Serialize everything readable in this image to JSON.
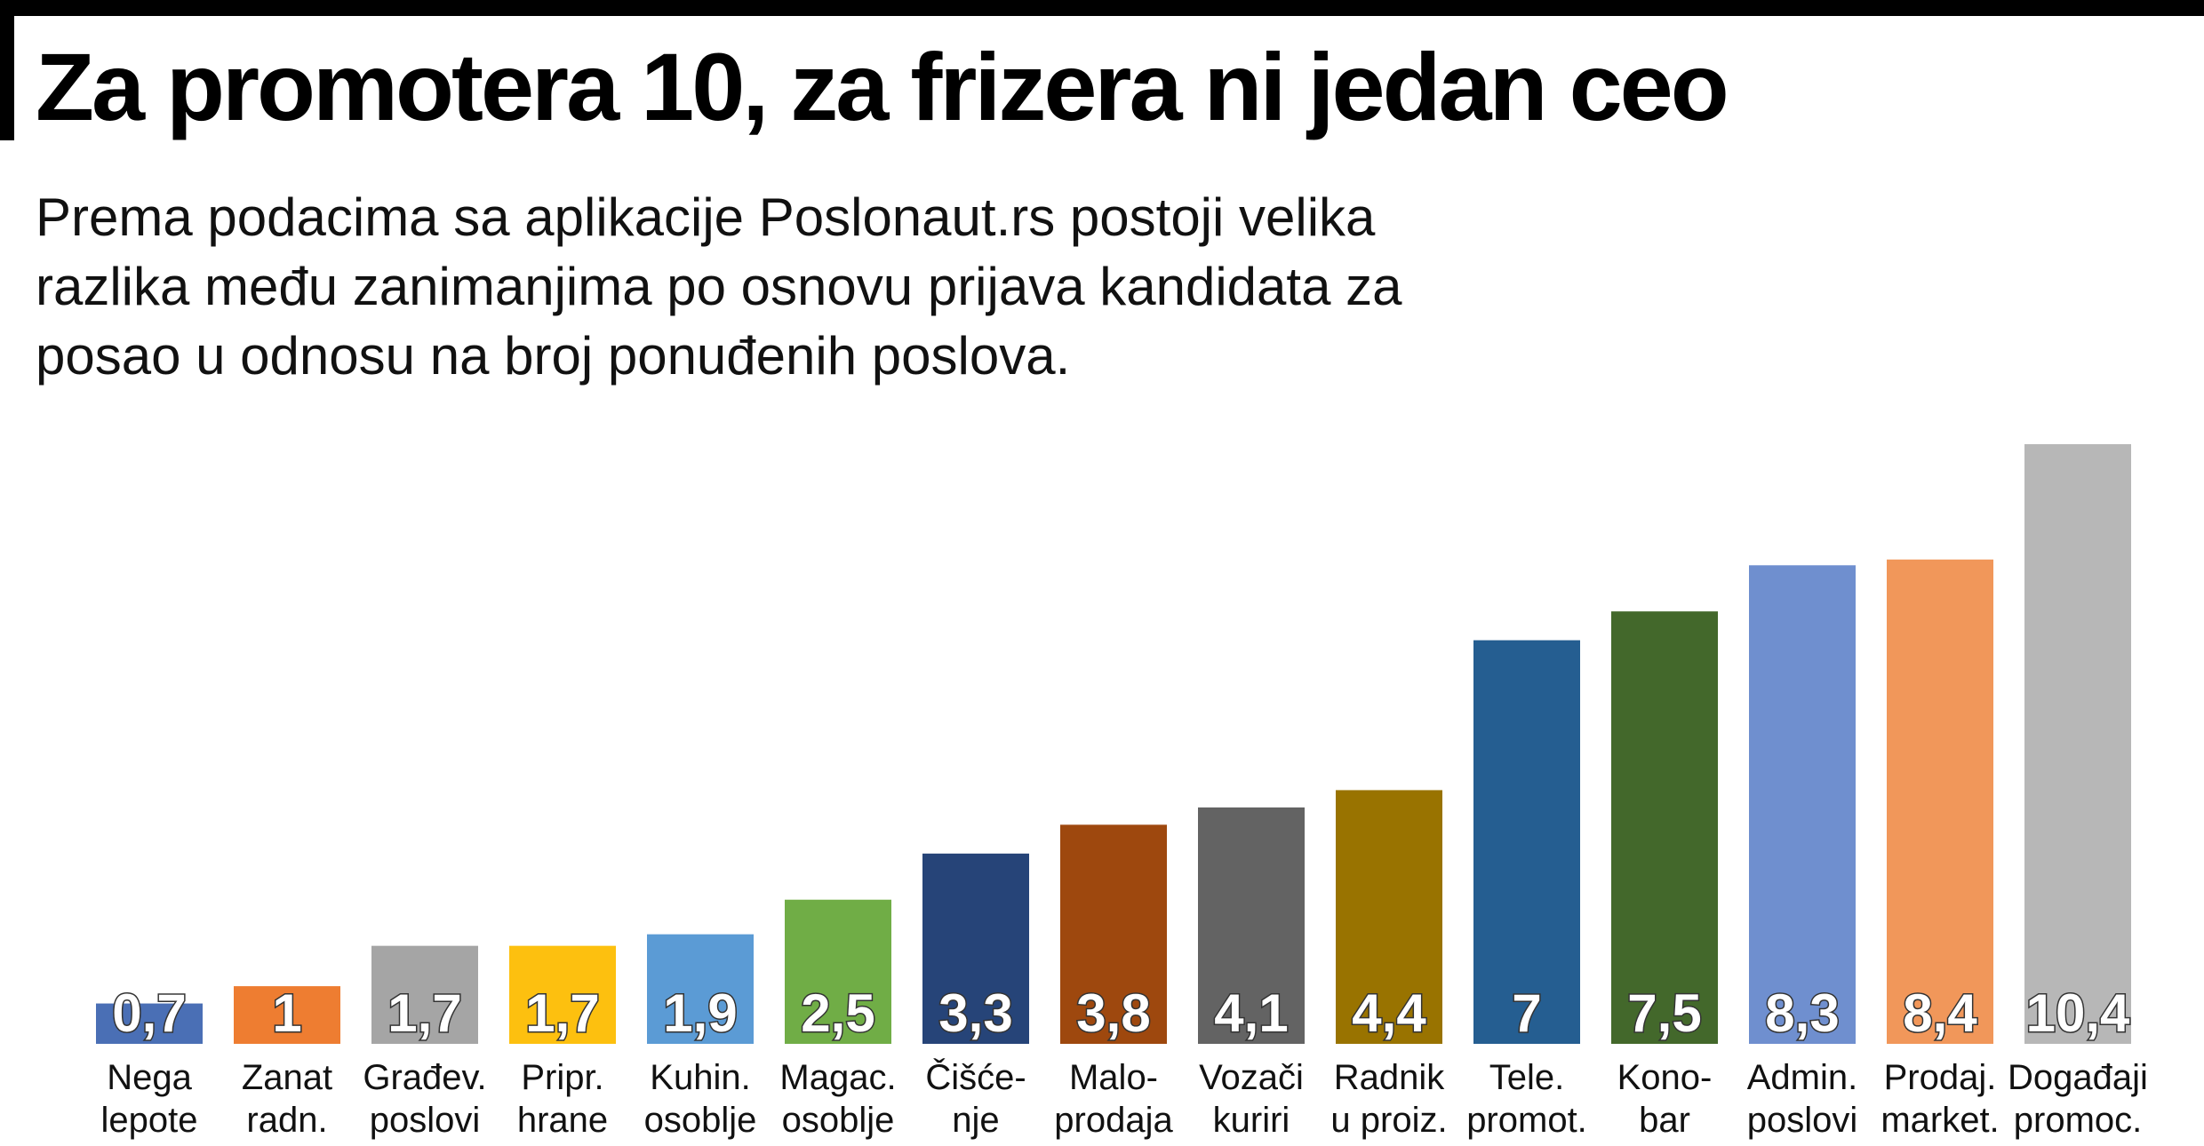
{
  "header": {
    "title": "Za promotera 10, za frizera ni jedan ceo",
    "subtitle": "Prema podacima sa aplikacije Poslonaut.rs postoji velika razlika među zanimanjima po osnovu prijava kandidata za posao u odnosu na broj ponuđenih poslova."
  },
  "chart_data": {
    "type": "bar",
    "categories": [
      [
        "Nega",
        "lepote"
      ],
      [
        "Zanat",
        "radn."
      ],
      [
        "Građev.",
        "poslovi"
      ],
      [
        "Pripr.",
        "hrane"
      ],
      [
        "Kuhin.",
        "osoblje"
      ],
      [
        "Magac.",
        "osoblje"
      ],
      [
        "Čišće-",
        "nje"
      ],
      [
        "Malo-",
        "prodaja"
      ],
      [
        "Vozači",
        "kuriri"
      ],
      [
        "Radnik",
        "u proiz."
      ],
      [
        "Tele.",
        "promot."
      ],
      [
        "Kono-",
        "bar"
      ],
      [
        "Admin.",
        "poslovi"
      ],
      [
        "Prodaj.",
        "market."
      ],
      [
        "Događaji",
        "promoc."
      ]
    ],
    "values": [
      0.7,
      1,
      1.7,
      1.7,
      1.9,
      2.5,
      3.3,
      3.8,
      4.1,
      4.4,
      7,
      7.5,
      8.3,
      8.4,
      10.4
    ],
    "value_labels": [
      "0,7",
      "1",
      "1,7",
      "1,7",
      "1,9",
      "2,5",
      "3,3",
      "3,8",
      "4,1",
      "4,4",
      "7",
      "7,5",
      "8,3",
      "8,4",
      "10,4"
    ],
    "colors": [
      "#4a6fb5",
      "#ee7d31",
      "#a5a5a5",
      "#fdc00f",
      "#5b9bd5",
      "#70ad46",
      "#264478",
      "#9e480e",
      "#636363",
      "#997300",
      "#255e91",
      "#43682b",
      "#6f8fcf",
      "#f1975a",
      "#b7b7b7"
    ],
    "ylim": [
      0,
      10.4
    ],
    "grid": false,
    "legend": "none"
  }
}
